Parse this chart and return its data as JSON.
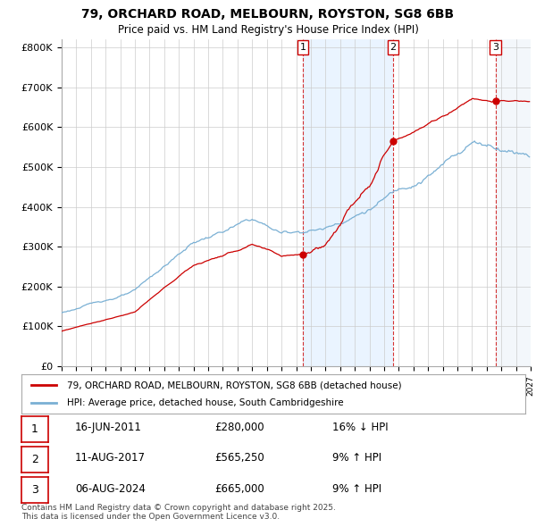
{
  "title": "79, ORCHARD ROAD, MELBOURN, ROYSTON, SG8 6BB",
  "subtitle": "Price paid vs. HM Land Registry's House Price Index (HPI)",
  "ylim": [
    0,
    820000
  ],
  "xlim_start": 1995.0,
  "xlim_end": 2027.0,
  "yticks": [
    0,
    100000,
    200000,
    300000,
    400000,
    500000,
    600000,
    700000,
    800000
  ],
  "ytick_labels": [
    "£0",
    "£100K",
    "£200K",
    "£300K",
    "£400K",
    "£500K",
    "£600K",
    "£700K",
    "£800K"
  ],
  "grid_color": "#cccccc",
  "fig_bg_color": "#ffffff",
  "plot_bg_color": "#ffffff",
  "shade_color": "#ddeeff",
  "red_line_color": "#cc0000",
  "blue_line_color": "#7ab0d4",
  "transaction1_x": 2011.45,
  "transaction2_x": 2017.62,
  "transaction3_x": 2024.6,
  "transaction1_price": 280000,
  "transaction2_price": 565250,
  "transaction3_price": 665000,
  "legend_red_label": "79, ORCHARD ROAD, MELBOURN, ROYSTON, SG8 6BB (detached house)",
  "legend_blue_label": "HPI: Average price, detached house, South Cambridgeshire",
  "footer_text": "Contains HM Land Registry data © Crown copyright and database right 2025.\nThis data is licensed under the Open Government Licence v3.0.",
  "table_rows": [
    {
      "num": "1",
      "date": "16-JUN-2011",
      "price": "£280,000",
      "hpi": "16% ↓ HPI"
    },
    {
      "num": "2",
      "date": "11-AUG-2017",
      "price": "£565,250",
      "hpi": "9% ↑ HPI"
    },
    {
      "num": "3",
      "date": "06-AUG-2024",
      "price": "£665,000",
      "hpi": "9% ↑ HPI"
    }
  ]
}
